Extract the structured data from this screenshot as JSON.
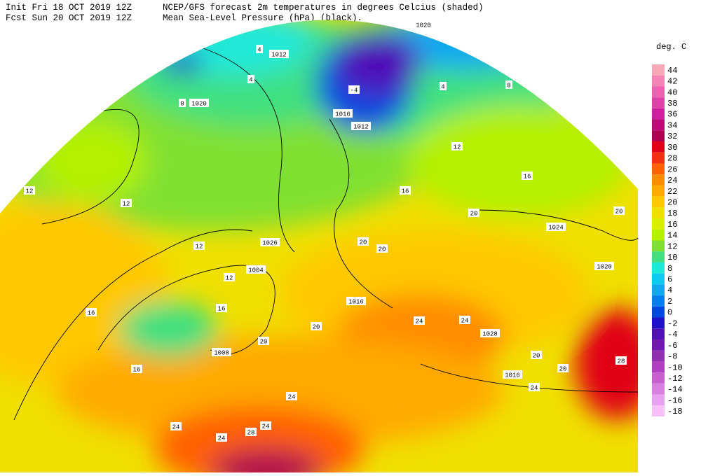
{
  "header": {
    "init": "Init  Fri 18 OCT 2019 12Z",
    "fcst": "Fcst Sun 20 OCT 2019 12Z",
    "title": "NCEP/GFS forecast 2m temperatures in degrees Celcius (shaded)",
    "subtitle": "Mean Sea-Level Pressure (hPa) (black)."
  },
  "legend": {
    "title": "deg. C",
    "levels": [
      44,
      42,
      40,
      38,
      36,
      34,
      32,
      30,
      28,
      26,
      24,
      22,
      20,
      18,
      16,
      14,
      12,
      10,
      8,
      6,
      4,
      2,
      0,
      -2,
      -4,
      -6,
      -8,
      -10,
      -12,
      -14,
      -16,
      -18
    ],
    "colors": [
      "#f6a8b6",
      "#f484b4",
      "#ef60b0",
      "#e040a8",
      "#d020a0",
      "#c00878",
      "#b00050",
      "#e00018",
      "#f03010",
      "#ff6000",
      "#ff8c00",
      "#ffaa00",
      "#ffc800",
      "#f0e000",
      "#d8f000",
      "#b4f000",
      "#80e030",
      "#40e080",
      "#20e8d8",
      "#10c8f0",
      "#10a8f0",
      "#0080f0",
      "#0048e0",
      "#2010c8",
      "#5010b8",
      "#7018b0",
      "#9030b0",
      "#b040c0",
      "#c860d0",
      "#d880e0",
      "#e8a0f0",
      "#f8c0f8"
    ]
  },
  "contour_labels": [
    "1020",
    "1012",
    "1020",
    "1016",
    "1012",
    "1024",
    "1026",
    "1004",
    "1020",
    "1016",
    "1028",
    "1008",
    "1016",
    "4",
    "4",
    "8",
    "-4",
    "8",
    "4",
    "12",
    "16",
    "12",
    "12",
    "16",
    "20",
    "20",
    "12",
    "20",
    "20",
    "12",
    "16",
    "16",
    "20",
    "20",
    "24",
    "24",
    "20",
    "20",
    "28",
    "24",
    "24",
    "24",
    "24",
    "28",
    "16",
    "24"
  ]
}
